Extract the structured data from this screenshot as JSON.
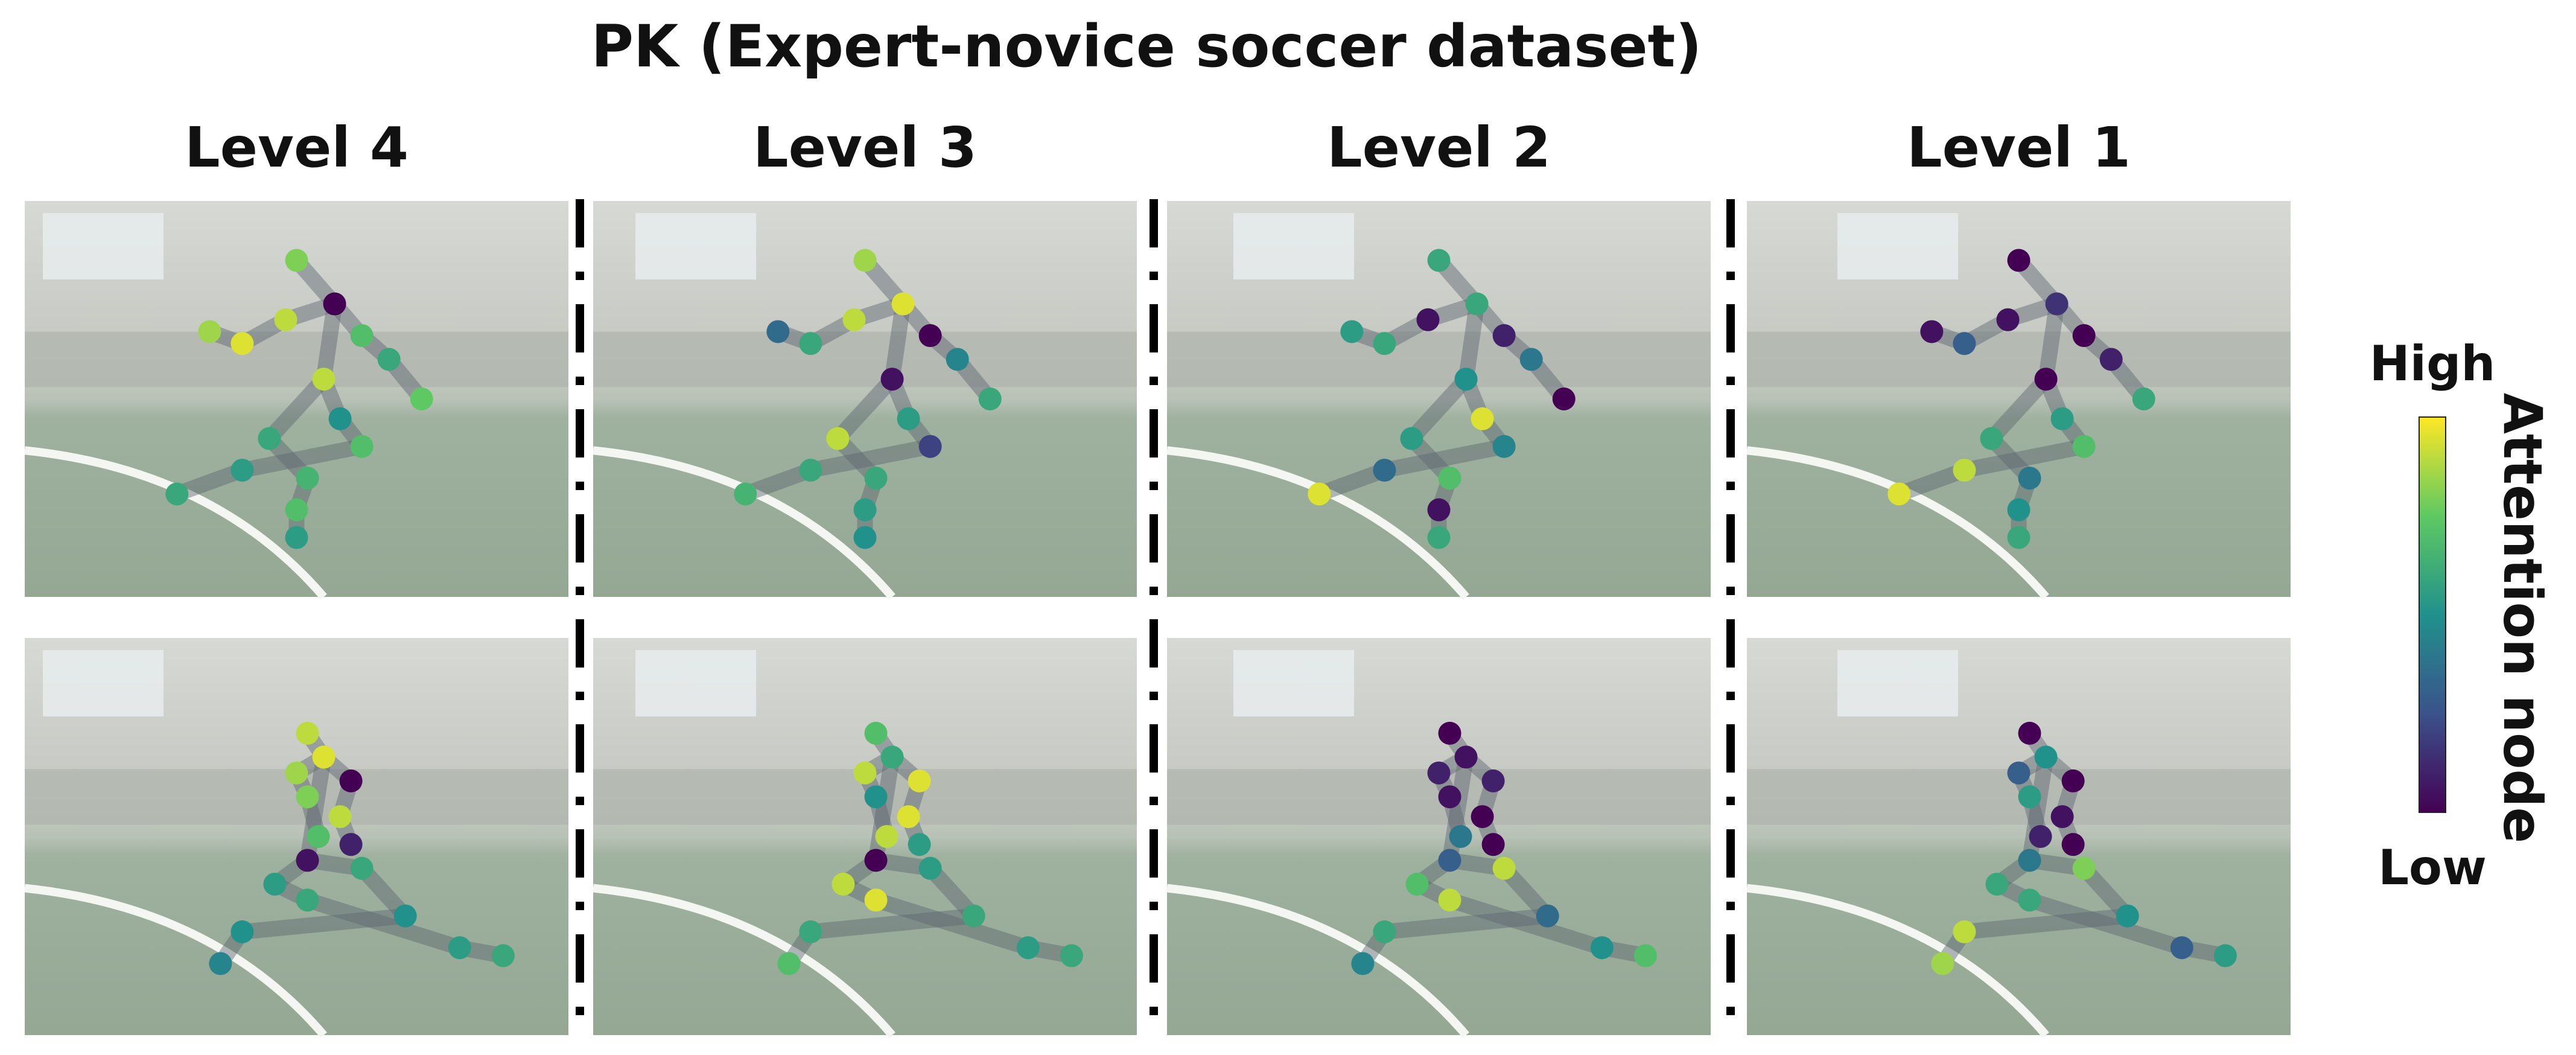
{
  "title": "PK (Expert-novice soccer dataset)",
  "columns": [
    {
      "label": "Level 4",
      "panels": [
        {
          "attention": [
            0.8,
            0.0,
            0.9,
            0.7,
            0.95,
            0.6,
            0.85,
            0.75,
            0.9,
            0.5,
            0.6,
            0.7,
            0.65,
            0.55,
            0.7,
            0.6,
            0.55
          ]
        },
        {
          "attention": [
            0.9,
            0.95,
            0.85,
            0.0,
            0.8,
            0.9,
            0.7,
            0.1,
            0.05,
            0.6,
            0.55,
            0.5,
            0.6,
            0.5,
            0.55,
            0.45,
            0.6
          ]
        }
      ]
    },
    {
      "label": "Level 3",
      "panels": [
        {
          "attention": [
            0.85,
            0.95,
            0.9,
            0.0,
            0.6,
            0.45,
            0.35,
            0.6,
            0.05,
            0.55,
            0.9,
            0.2,
            0.6,
            0.6,
            0.55,
            0.65,
            0.5
          ]
        },
        {
          "attention": [
            0.7,
            0.6,
            0.9,
            0.95,
            0.5,
            0.95,
            0.9,
            0.55,
            0.0,
            0.55,
            0.9,
            0.6,
            0.95,
            0.6,
            0.55,
            0.7,
            0.6
          ]
        }
      ]
    },
    {
      "label": "Level 2",
      "panels": [
        {
          "attention": [
            0.6,
            0.6,
            0.05,
            0.1,
            0.6,
            0.4,
            0.55,
            0.0,
            0.5,
            0.95,
            0.55,
            0.45,
            0.7,
            0.35,
            0.05,
            0.95,
            0.6
          ]
        },
        {
          "attention": [
            0.0,
            0.05,
            0.1,
            0.1,
            0.05,
            0.0,
            0.4,
            0.0,
            0.3,
            0.9,
            0.7,
            0.35,
            0.9,
            0.6,
            0.5,
            0.45,
            0.7
          ]
        }
      ]
    },
    {
      "label": "Level 1",
      "panels": [
        {
          "attention": [
            0.0,
            0.15,
            0.05,
            0.0,
            0.3,
            0.1,
            0.05,
            0.6,
            0.0,
            0.55,
            0.6,
            0.7,
            0.4,
            0.9,
            0.5,
            0.95,
            0.6
          ]
        },
        {
          "attention": [
            0.0,
            0.5,
            0.3,
            0.0,
            0.55,
            0.05,
            0.1,
            0.0,
            0.4,
            0.8,
            0.6,
            0.5,
            0.6,
            0.9,
            0.3,
            0.85,
            0.55
          ]
        }
      ]
    }
  ],
  "colorbar": {
    "high": "High",
    "low": "Low",
    "label": "Attention node",
    "colors": [
      "#440154",
      "#3b528b",
      "#21918c",
      "#5ec962",
      "#fde725"
    ]
  }
}
